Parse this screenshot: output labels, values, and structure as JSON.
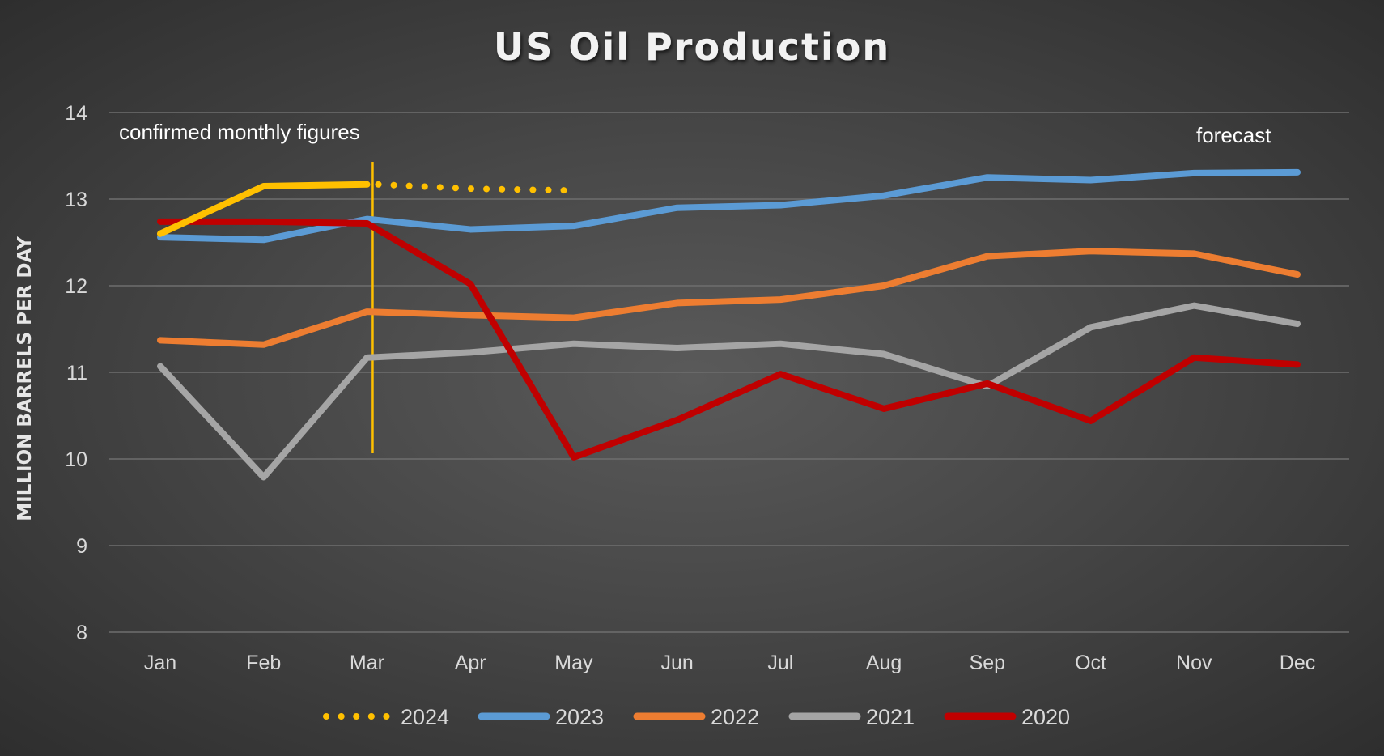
{
  "chart_data": {
    "type": "line",
    "title": "US Oil Production",
    "xlabel": "",
    "ylabel": "MILLION BARRELS PER DAY",
    "categories": [
      "Jan",
      "Feb",
      "Mar",
      "Apr",
      "May",
      "Jun",
      "Jul",
      "Aug",
      "Sep",
      "Oct",
      "Nov",
      "Dec"
    ],
    "ylim": [
      8,
      14
    ],
    "yticks": [
      8,
      9,
      10,
      11,
      12,
      13,
      14
    ],
    "grid": true,
    "legend_position": "bottom",
    "annotations": {
      "confirmed": "confirmed monthly figures",
      "forecast": "forecast"
    },
    "divider_after": "Mar",
    "series": [
      {
        "name": "2024",
        "color": "#ffc000",
        "style": "dotted",
        "values": [
          12.6,
          13.15,
          13.17,
          13.12,
          13.1,
          null,
          null,
          null,
          null,
          null,
          null,
          null
        ],
        "forecast_from_index": 2
      },
      {
        "name": "2023",
        "color": "#5b9bd5",
        "style": "solid",
        "values": [
          12.56,
          12.53,
          12.77,
          12.65,
          12.69,
          12.9,
          12.93,
          13.04,
          13.25,
          13.22,
          13.3,
          13.31
        ]
      },
      {
        "name": "2022",
        "color": "#ed7d31",
        "style": "solid",
        "values": [
          11.37,
          11.32,
          11.7,
          11.66,
          11.63,
          11.8,
          11.84,
          12.0,
          12.34,
          12.4,
          12.37,
          12.13
        ]
      },
      {
        "name": "2021",
        "color": "#a5a5a5",
        "style": "solid",
        "values": [
          11.07,
          9.79,
          11.17,
          11.23,
          11.33,
          11.28,
          11.33,
          11.21,
          10.84,
          11.52,
          11.77,
          11.56
        ]
      },
      {
        "name": "2020",
        "color": "#c00000",
        "style": "solid",
        "values": [
          12.74,
          12.74,
          12.72,
          12.02,
          10.02,
          10.45,
          10.98,
          10.58,
          10.87,
          10.44,
          11.17,
          11.09
        ]
      }
    ]
  }
}
